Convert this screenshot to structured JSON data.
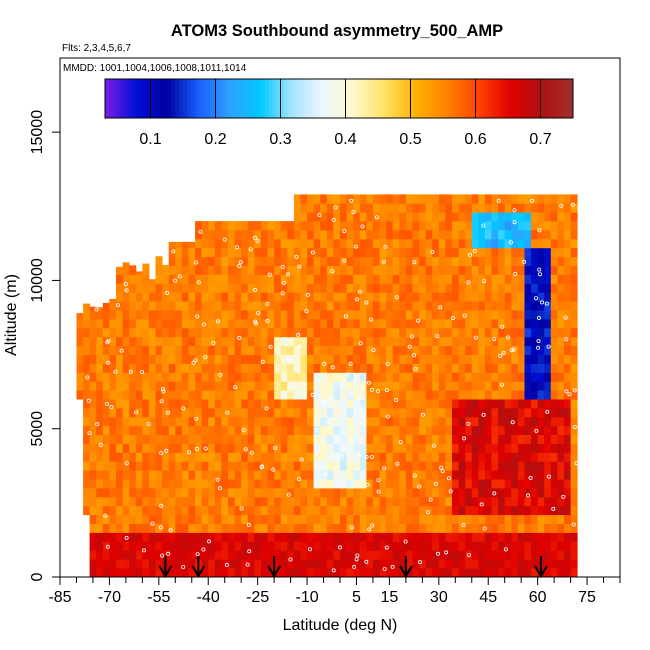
{
  "chart_data": {
    "type": "heatmap",
    "title": "ATOM3 Southbound asymmetry_500_AMP",
    "subtitle_flights": "Flts: 2,3,4,5,6,7",
    "subtitle_dates": "MMDD: 1001,1004,1006,1008,1011,1014",
    "xlabel": "Latitude (deg N)",
    "ylabel": "Altitude (m)",
    "xlim": [
      -85,
      85
    ],
    "ylim": [
      0,
      17500
    ],
    "x_ticks_labeled": [
      -85,
      -70,
      -55,
      -40,
      -25,
      -10,
      5,
      15,
      30,
      45,
      60,
      75
    ],
    "x_ticks_minor": [
      -80,
      -75,
      -65,
      -60,
      -50,
      -45,
      -35,
      -30,
      -20,
      -15,
      -5,
      0,
      10,
      20,
      25,
      35,
      40,
      50,
      55,
      65,
      70,
      80,
      85
    ],
    "y_ticks": [
      0,
      5000,
      10000,
      15000
    ],
    "colorbar": {
      "min": 0.03,
      "max": 0.75,
      "ticks": [
        0.1,
        0.2,
        0.3,
        0.4,
        0.5,
        0.6,
        0.7
      ],
      "colors": [
        "#7b1fe6",
        "#0010d8",
        "#0000a0",
        "#1860ff",
        "#30a0ff",
        "#00c8ff",
        "#a8e4ff",
        "#eef8ff",
        "#fff8c8",
        "#ffe060",
        "#ffb000",
        "#ff8000",
        "#ff4000",
        "#e00000",
        "#b01010",
        "#a03030"
      ]
    },
    "flight_arrows_lat": [
      -53,
      -43,
      -20,
      20,
      61
    ],
    "field_summary": {
      "lat_range": [
        -80,
        72
      ],
      "alt_range": [
        0,
        12900
      ],
      "background_value": 0.56,
      "features": [
        {
          "desc": "low blue column",
          "lat": [
            57,
            63
          ],
          "alt": [
            6000,
            11000
          ],
          "value": 0.12
        },
        {
          "desc": "blue patch upper",
          "lat": [
            40,
            58
          ],
          "alt": [
            11000,
            12400
          ],
          "value": 0.25
        },
        {
          "desc": "light blue/cream plume",
          "lat": [
            -8,
            8
          ],
          "alt": [
            3000,
            7000
          ],
          "value": 0.38
        },
        {
          "desc": "light patch",
          "lat": [
            -20,
            -10
          ],
          "alt": [
            6000,
            8000
          ],
          "value": 0.42
        },
        {
          "desc": "red lower layer",
          "lat": [
            -78,
            72
          ],
          "alt": [
            0,
            1500
          ],
          "value": 0.68
        },
        {
          "desc": "red core",
          "lat": [
            35,
            70
          ],
          "alt": [
            2000,
            6000
          ],
          "value": 0.66
        }
      ]
    }
  }
}
